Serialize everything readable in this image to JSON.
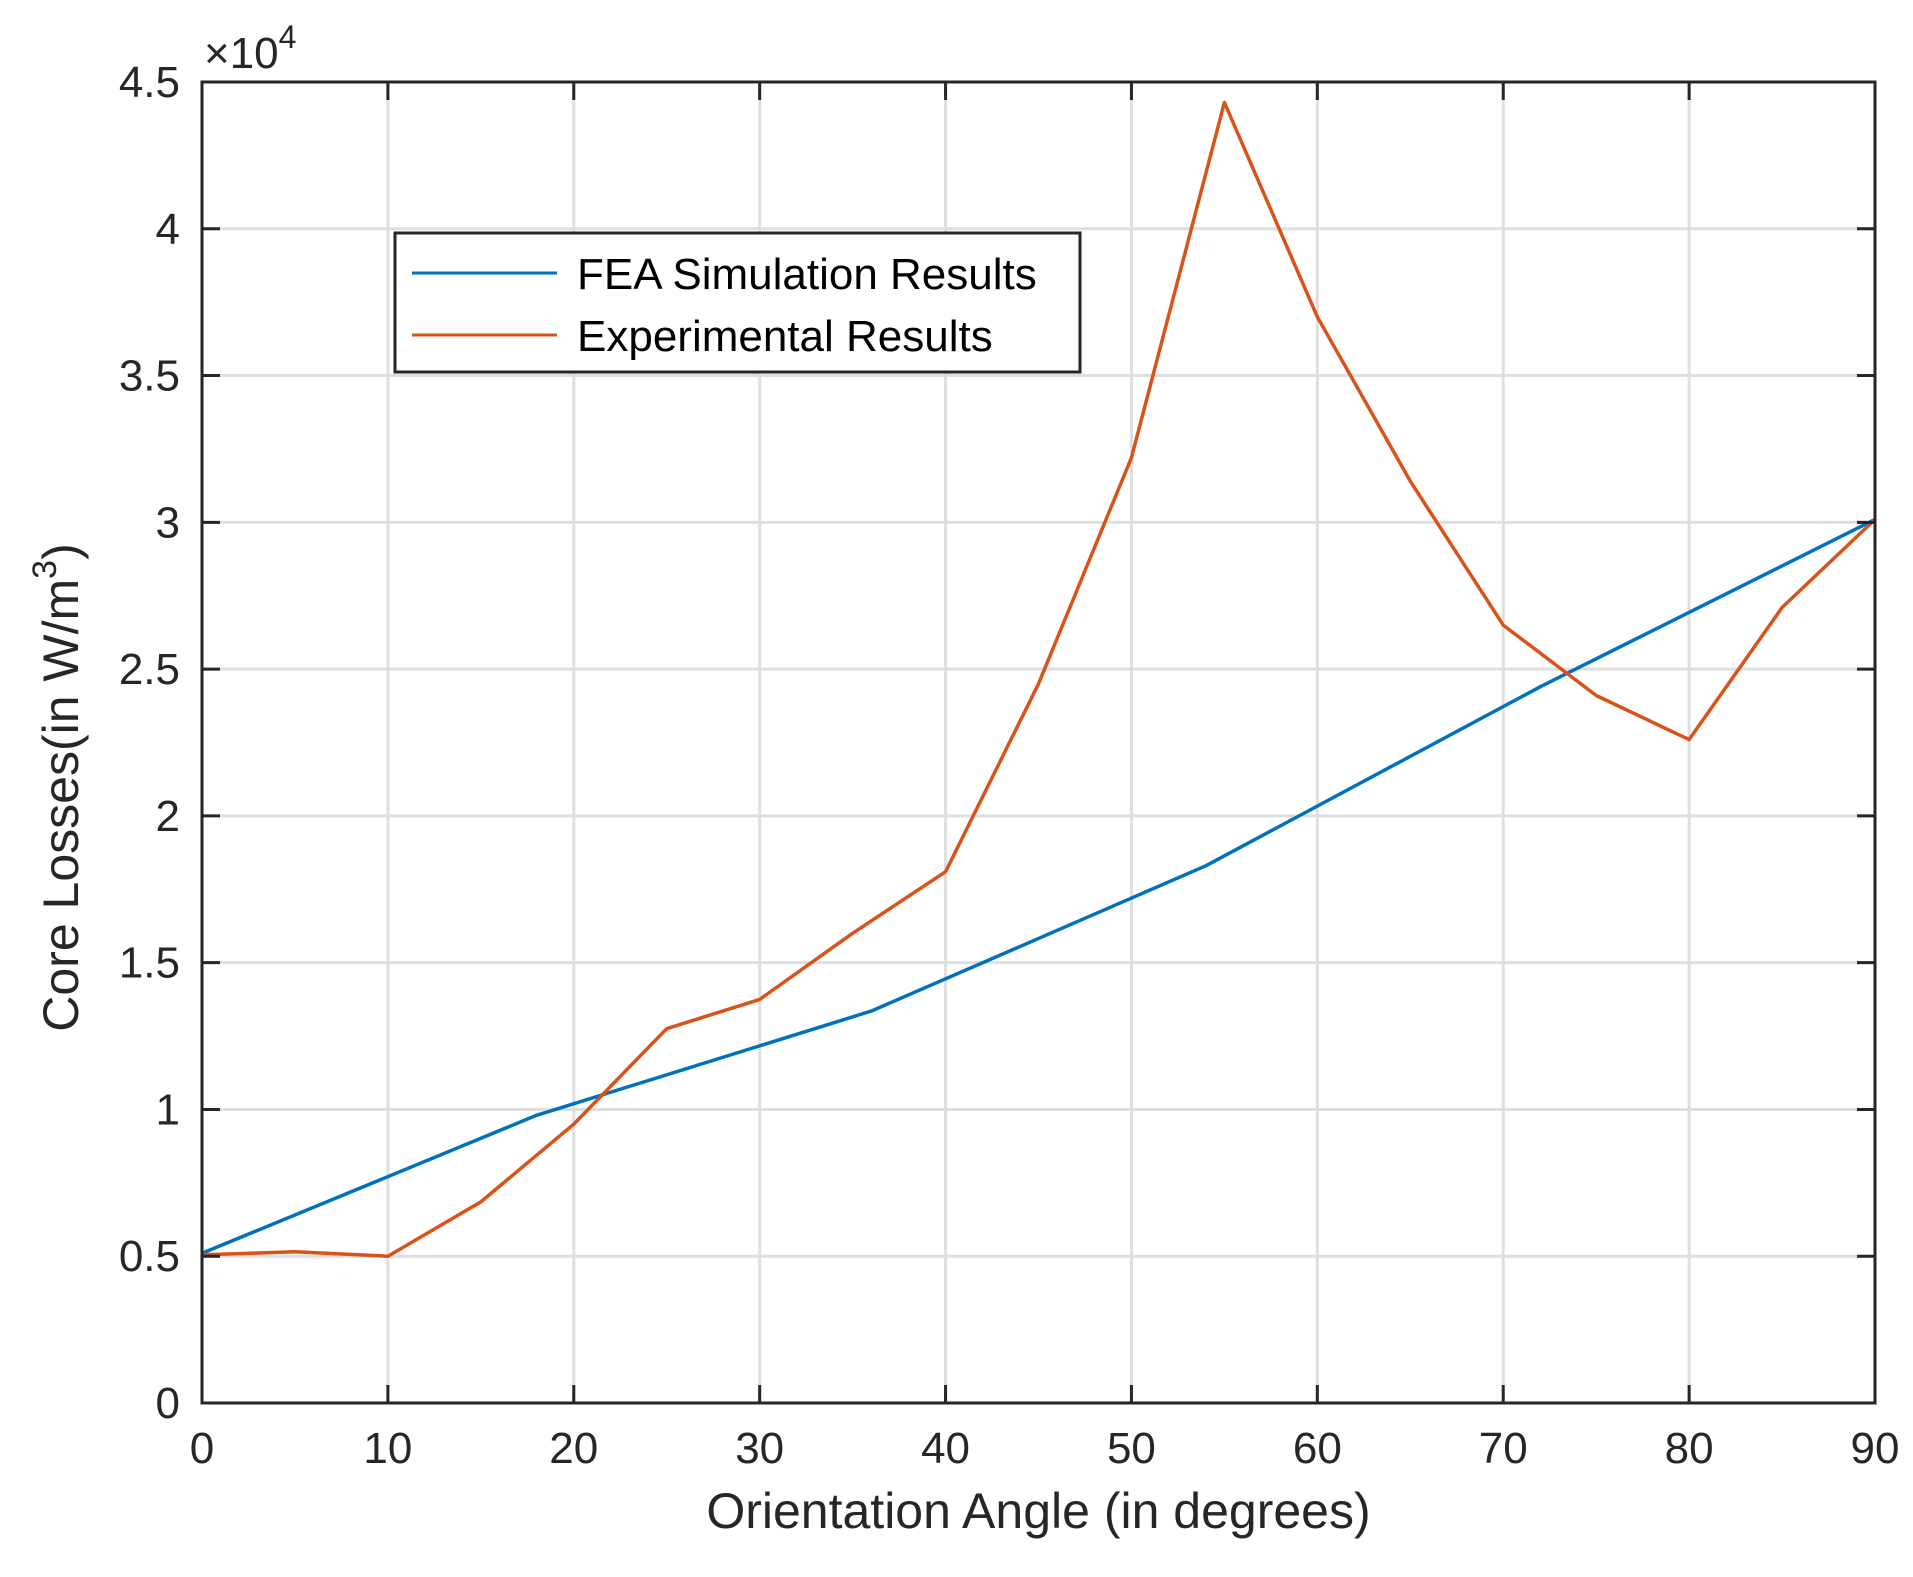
{
  "chart_data": {
    "type": "line",
    "xlabel": "Orientation Angle (in degrees)",
    "ylabel_main": "Core Losses(in W/m",
    "ylabel_sup": "3",
    "ylabel_close": ")",
    "exponent_prefix": "×10",
    "exponent_power": "4",
    "xlim": [
      0,
      90
    ],
    "ylim": [
      0,
      4.5
    ],
    "xticks": [
      0,
      10,
      20,
      30,
      40,
      50,
      60,
      70,
      80,
      90
    ],
    "yticks": [
      0,
      0.5,
      1,
      1.5,
      2,
      2.5,
      3,
      3.5,
      4,
      4.5
    ],
    "ytick_labels": [
      "0",
      "0.5",
      "1",
      "1.5",
      "2",
      "2.5",
      "3",
      "3.5",
      "4",
      "4.5"
    ],
    "grid": true,
    "legend_position": "upper-left",
    "series": [
      {
        "name": "FEA Simulation Results",
        "color": "#0072BD",
        "x": [
          0,
          18,
          36,
          54,
          72,
          90
        ],
        "y": [
          0.51,
          0.98,
          1.335,
          1.83,
          2.44,
          3.01
        ]
      },
      {
        "name": "Experimental Results",
        "color": "#D95319",
        "x": [
          0,
          5,
          10,
          15,
          20,
          25,
          30,
          35,
          40,
          45,
          50,
          55,
          60,
          65,
          70,
          75,
          80,
          85,
          90
        ],
        "y": [
          0.505,
          0.515,
          0.5,
          0.685,
          0.95,
          1.275,
          1.375,
          1.6,
          1.81,
          2.45,
          3.22,
          4.43,
          3.7,
          3.14,
          2.65,
          2.41,
          2.26,
          2.71,
          3.01
        ]
      }
    ]
  }
}
